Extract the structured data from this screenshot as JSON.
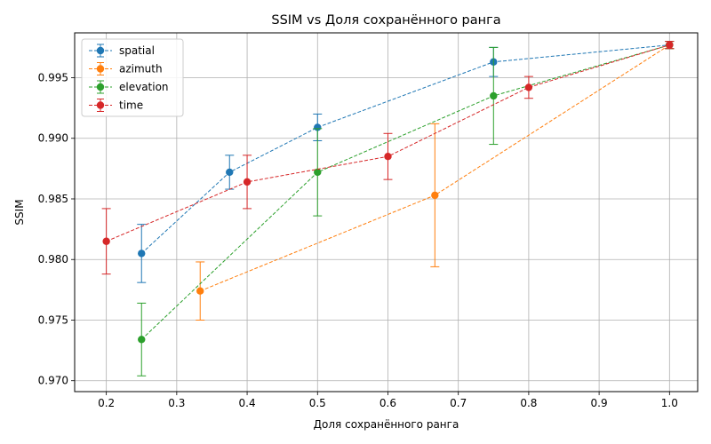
{
  "chart_data": {
    "type": "line",
    "title": "SSIM vs Доля сохранённого ранга",
    "xlabel": "Доля сохранённого ранга",
    "ylabel": "SSIM",
    "xlim": [
      0.155,
      1.04
    ],
    "ylim": [
      0.9691,
      0.9987
    ],
    "x_ticks": [
      0.2,
      0.3,
      0.4,
      0.5,
      0.6,
      0.7,
      0.8,
      0.9,
      1.0
    ],
    "x_tick_labels": [
      "0.2",
      "0.3",
      "0.4",
      "0.5",
      "0.6",
      "0.7",
      "0.8",
      "0.9",
      "1.0"
    ],
    "y_ticks": [
      0.97,
      0.975,
      0.98,
      0.985,
      0.99,
      0.995
    ],
    "y_tick_labels": [
      "0.970",
      "0.975",
      "0.980",
      "0.985",
      "0.990",
      "0.995"
    ],
    "grid": true,
    "legend_position": "top-left",
    "series": [
      {
        "name": "spatial",
        "color": "#1f77b4",
        "x": [
          0.25,
          0.375,
          0.5,
          0.75,
          1.0
        ],
        "y": [
          0.9805,
          0.9872,
          0.9909,
          0.9963,
          0.9977
        ],
        "err": [
          0.0024,
          0.0014,
          0.0011,
          0.0012,
          0.0003
        ]
      },
      {
        "name": "azimuth",
        "color": "#ff7f0e",
        "x": [
          0.3333,
          0.6667,
          1.0
        ],
        "y": [
          0.9774,
          0.9853,
          0.9977
        ],
        "err": [
          0.0024,
          0.0059,
          0.0003
        ]
      },
      {
        "name": "elevation",
        "color": "#2ca02c",
        "x": [
          0.25,
          0.5,
          0.75,
          1.0
        ],
        "y": [
          0.9734,
          0.9872,
          0.9935,
          0.9977
        ],
        "err": [
          0.003,
          0.0036,
          0.004,
          0.0003
        ]
      },
      {
        "name": "time",
        "color": "#d62728",
        "x": [
          0.2,
          0.4,
          0.6,
          0.8,
          1.0
        ],
        "y": [
          0.9815,
          0.9864,
          0.9885,
          0.9942,
          0.9977
        ],
        "err": [
          0.0027,
          0.0022,
          0.0019,
          0.0009,
          0.0003
        ]
      }
    ]
  }
}
